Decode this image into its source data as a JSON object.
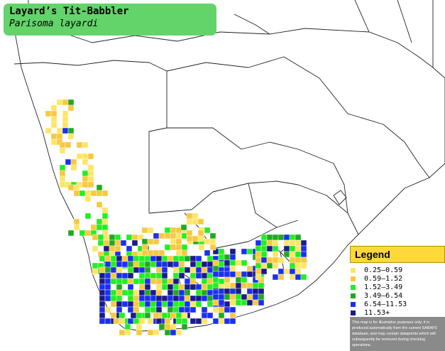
{
  "title": {
    "common_name": "Layard’s Tit-Babbler",
    "scientific_name": "Parisoma layardi"
  },
  "legend": {
    "heading": "Legend",
    "items": [
      {
        "label": "0.25–0.59",
        "color": "#ffe566"
      },
      {
        "label": "0.59–1.52",
        "color": "#f7c940"
      },
      {
        "label": "1.52–3.49",
        "color": "#22ee22"
      },
      {
        "label": "3.49–6.54",
        "color": "#22a822"
      },
      {
        "label": "6.54–11.53",
        "color": "#1a2ff0"
      },
      {
        "label": "11.53+",
        "color": "#1a1a8a"
      }
    ],
    "disclaimer": "This map is for illustrative purposes only; it is produced automatically from the current SABAP2 database, and may contain datapoints which will subsequently be removed during checking operations."
  },
  "map_colors": {
    "land": "#ffffff",
    "border": "#222222",
    "grid": "#c8c8c8"
  }
}
